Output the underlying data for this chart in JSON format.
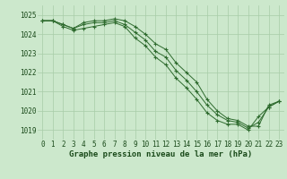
{
  "title": "Graphe pression niveau de la mer (hPa)",
  "xlabel_hours": [
    0,
    1,
    2,
    3,
    4,
    5,
    6,
    7,
    8,
    9,
    10,
    11,
    12,
    13,
    14,
    15,
    16,
    17,
    18,
    19,
    20,
    21,
    22,
    23
  ],
  "line1": [
    1024.7,
    1024.7,
    1024.5,
    1024.3,
    1024.6,
    1024.7,
    1024.7,
    1024.8,
    1024.7,
    1024.4,
    1024.0,
    1023.5,
    1023.2,
    1022.5,
    1022.0,
    1021.5,
    1020.6,
    1020.0,
    1019.6,
    1019.5,
    1019.2,
    1019.2,
    1020.3,
    1020.5
  ],
  "line2": [
    1024.7,
    1024.7,
    1024.4,
    1024.2,
    1024.3,
    1024.4,
    1024.5,
    1024.6,
    1024.4,
    1023.8,
    1023.4,
    1022.8,
    1022.4,
    1021.7,
    1021.2,
    1020.6,
    1019.9,
    1019.5,
    1019.3,
    1019.3,
    1019.0,
    1019.7,
    1020.2,
    1020.5
  ],
  "line3": [
    1024.7,
    1024.7,
    1024.5,
    1024.3,
    1024.5,
    1024.6,
    1024.6,
    1024.7,
    1024.5,
    1024.1,
    1023.7,
    1023.1,
    1022.8,
    1022.1,
    1021.6,
    1021.0,
    1020.3,
    1019.8,
    1019.5,
    1019.4,
    1019.1,
    1019.4,
    1020.2,
    1020.5
  ],
  "line_color": "#2d6a2d",
  "bg_color": "#cce8cc",
  "grid_color": "#a8cca8",
  "text_color": "#1a4a1a",
  "ylim": [
    1018.5,
    1025.5
  ],
  "yticks": [
    1019,
    1020,
    1021,
    1022,
    1023,
    1024,
    1025
  ],
  "title_fontsize": 6.5,
  "tick_fontsize": 5.5
}
